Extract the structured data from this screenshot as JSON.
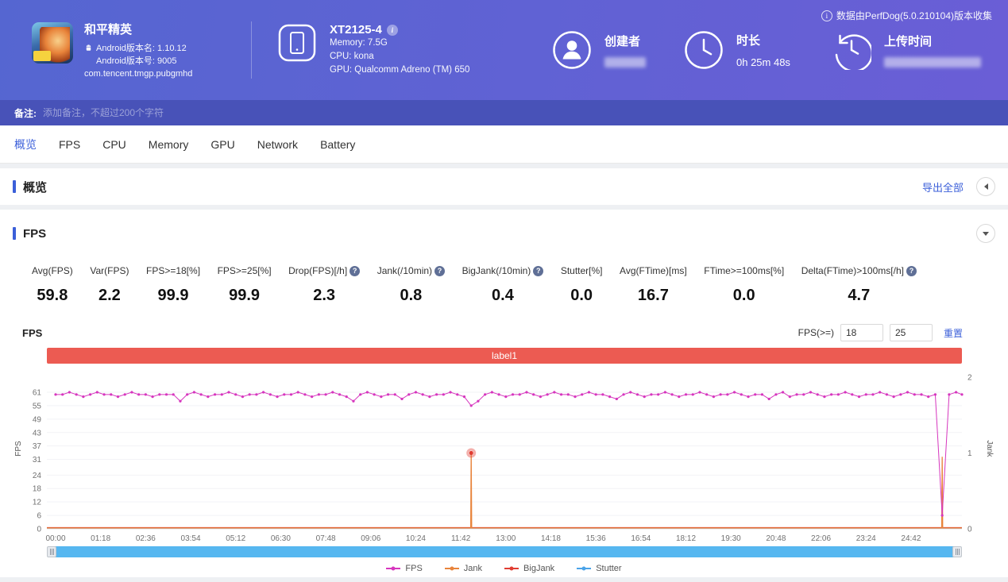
{
  "header": {
    "app": {
      "name": "和平精英",
      "version_name": "Android版本名: 1.10.12",
      "version_code": "Android版本号: 9005",
      "package": "com.tencent.tmgp.pubgmhd"
    },
    "device": {
      "model": "XT2125-4",
      "memory": "Memory: 7.5G",
      "cpu": "CPU: kona",
      "gpu": "GPU: Qualcomm Adreno (TM) 650"
    },
    "creator_label": "创建者",
    "duration_label": "时长",
    "duration_value": "0h 25m 48s",
    "upload_label": "上传时间",
    "collect_info": "数据由PerfDog(5.0.210104)版本收集"
  },
  "note": {
    "label": "备注:",
    "placeholder": "添加备注，不超过200个字符"
  },
  "tabs": [
    {
      "key": "overview",
      "label": "概览",
      "active": true
    },
    {
      "key": "fps",
      "label": "FPS",
      "active": false
    },
    {
      "key": "cpu",
      "label": "CPU",
      "active": false
    },
    {
      "key": "memory",
      "label": "Memory",
      "active": false
    },
    {
      "key": "gpu",
      "label": "GPU",
      "active": false
    },
    {
      "key": "network",
      "label": "Network",
      "active": false
    },
    {
      "key": "battery",
      "label": "Battery",
      "active": false
    }
  ],
  "overview": {
    "title": "概览",
    "export_all": "导出全部"
  },
  "fps": {
    "section_title": "FPS",
    "chart_title": "FPS",
    "threshold_label": "FPS(>=)",
    "threshold_low": "18",
    "threshold_high": "25",
    "reset_label": "重置",
    "metrics": [
      {
        "key": "avg-fps",
        "label": "Avg(FPS)",
        "value": "59.8",
        "help": false
      },
      {
        "key": "var-fps",
        "label": "Var(FPS)",
        "value": "2.2",
        "help": false
      },
      {
        "key": "fps-ge-18",
        "label": "FPS>=18[%]",
        "value": "99.9",
        "help": false
      },
      {
        "key": "fps-ge-25",
        "label": "FPS>=25[%]",
        "value": "99.9",
        "help": false
      },
      {
        "key": "drop-fps",
        "label": "Drop(FPS)[/h]",
        "value": "2.3",
        "help": true
      },
      {
        "key": "jank",
        "label": "Jank(/10min)",
        "value": "0.8",
        "help": true
      },
      {
        "key": "bigjank",
        "label": "BigJank(/10min)",
        "value": "0.4",
        "help": true
      },
      {
        "key": "stutter",
        "label": "Stutter[%]",
        "value": "0.0",
        "help": false
      },
      {
        "key": "avg-ftime",
        "label": "Avg(FTime)[ms]",
        "value": "16.7",
        "help": false
      },
      {
        "key": "ftime-ge-100",
        "label": "FTime>=100ms[%]",
        "value": "0.0",
        "help": false
      },
      {
        "key": "delta-ftime",
        "label": "Delta(FTime)>100ms[/h]",
        "value": "4.7",
        "help": true
      }
    ]
  },
  "chart_data": {
    "type": "line",
    "title": "FPS",
    "annotation_label": "label1",
    "x_axis": {
      "min": 0,
      "max": 26.2,
      "tick_minutes": [
        0,
        1.3,
        2.6,
        3.9,
        5.2,
        6.5,
        7.8,
        9.1,
        10.4,
        11.7,
        13,
        14.3,
        15.6,
        16.9,
        18.2,
        19.5,
        20.8,
        22.1,
        23.4,
        24.7
      ],
      "tick_labels": [
        "00:00",
        "01:18",
        "02:36",
        "03:54",
        "05:12",
        "06:30",
        "07:48",
        "09:06",
        "10:24",
        "11:42",
        "13:00",
        "14:18",
        "15:36",
        "16:54",
        "18:12",
        "19:30",
        "20:48",
        "22:06",
        "23:24",
        "24:42"
      ]
    },
    "y_left": {
      "label": "FPS",
      "ticks": [
        0,
        6,
        12,
        18,
        24,
        31,
        37,
        43,
        49,
        55,
        61
      ],
      "max": 68
    },
    "y_right": {
      "label": "Jank",
      "ticks": [
        0,
        1,
        2
      ],
      "max": 2
    },
    "legend_position": "bottom",
    "grid": true,
    "series": [
      {
        "name": "FPS",
        "color": "#d636be",
        "axis": "left",
        "t0": 0,
        "dt": 0.2,
        "values": [
          60,
          60,
          61,
          60,
          59,
          60,
          61,
          60,
          60,
          59,
          60,
          61,
          60,
          60,
          59,
          60,
          60,
          60,
          57,
          60,
          61,
          60,
          59,
          60,
          60,
          61,
          60,
          59,
          60,
          60,
          61,
          60,
          59,
          60,
          60,
          61,
          60,
          59,
          60,
          60,
          61,
          60,
          59,
          57,
          60,
          61,
          60,
          59,
          60,
          60,
          58,
          60,
          61,
          60,
          59,
          60,
          60,
          61,
          60,
          59,
          55,
          57,
          60,
          61,
          60,
          59,
          60,
          60,
          61,
          60,
          59,
          60,
          61,
          60,
          60,
          59,
          60,
          61,
          60,
          60,
          59,
          58,
          60,
          61,
          60,
          59,
          60,
          60,
          61,
          60,
          59,
          60,
          60,
          61,
          60,
          59,
          60,
          60,
          61,
          60,
          59,
          60,
          60,
          58,
          60,
          61,
          59,
          60,
          60,
          61,
          60,
          59,
          60,
          60,
          61,
          60,
          59,
          60,
          60,
          61,
          60,
          59,
          60,
          61,
          60,
          60,
          59,
          60,
          6,
          60,
          61,
          60
        ]
      },
      {
        "name": "Jank",
        "color": "#e8843c",
        "axis": "right",
        "baseline": 0,
        "spikes": [
          {
            "t": 12.0,
            "v": 1
          },
          {
            "t": 25.6,
            "v": 0.95
          }
        ]
      },
      {
        "name": "BigJank",
        "color": "#e03d32",
        "axis": "right",
        "baseline": 0,
        "points": [
          {
            "t": 12.0,
            "v": 1
          }
        ]
      },
      {
        "name": "Stutter",
        "color": "#4aa3e8",
        "axis": "right",
        "baseline": 0
      }
    ]
  },
  "colors": {
    "header_gradient_start": "#5566d1",
    "header_gradient_end": "#6a5ed6",
    "note_bar": "#4852b8",
    "accent_blue": "#3b5fd9",
    "banner_red": "#ec5b52",
    "scrollbar_blue": "#56b7f0"
  }
}
